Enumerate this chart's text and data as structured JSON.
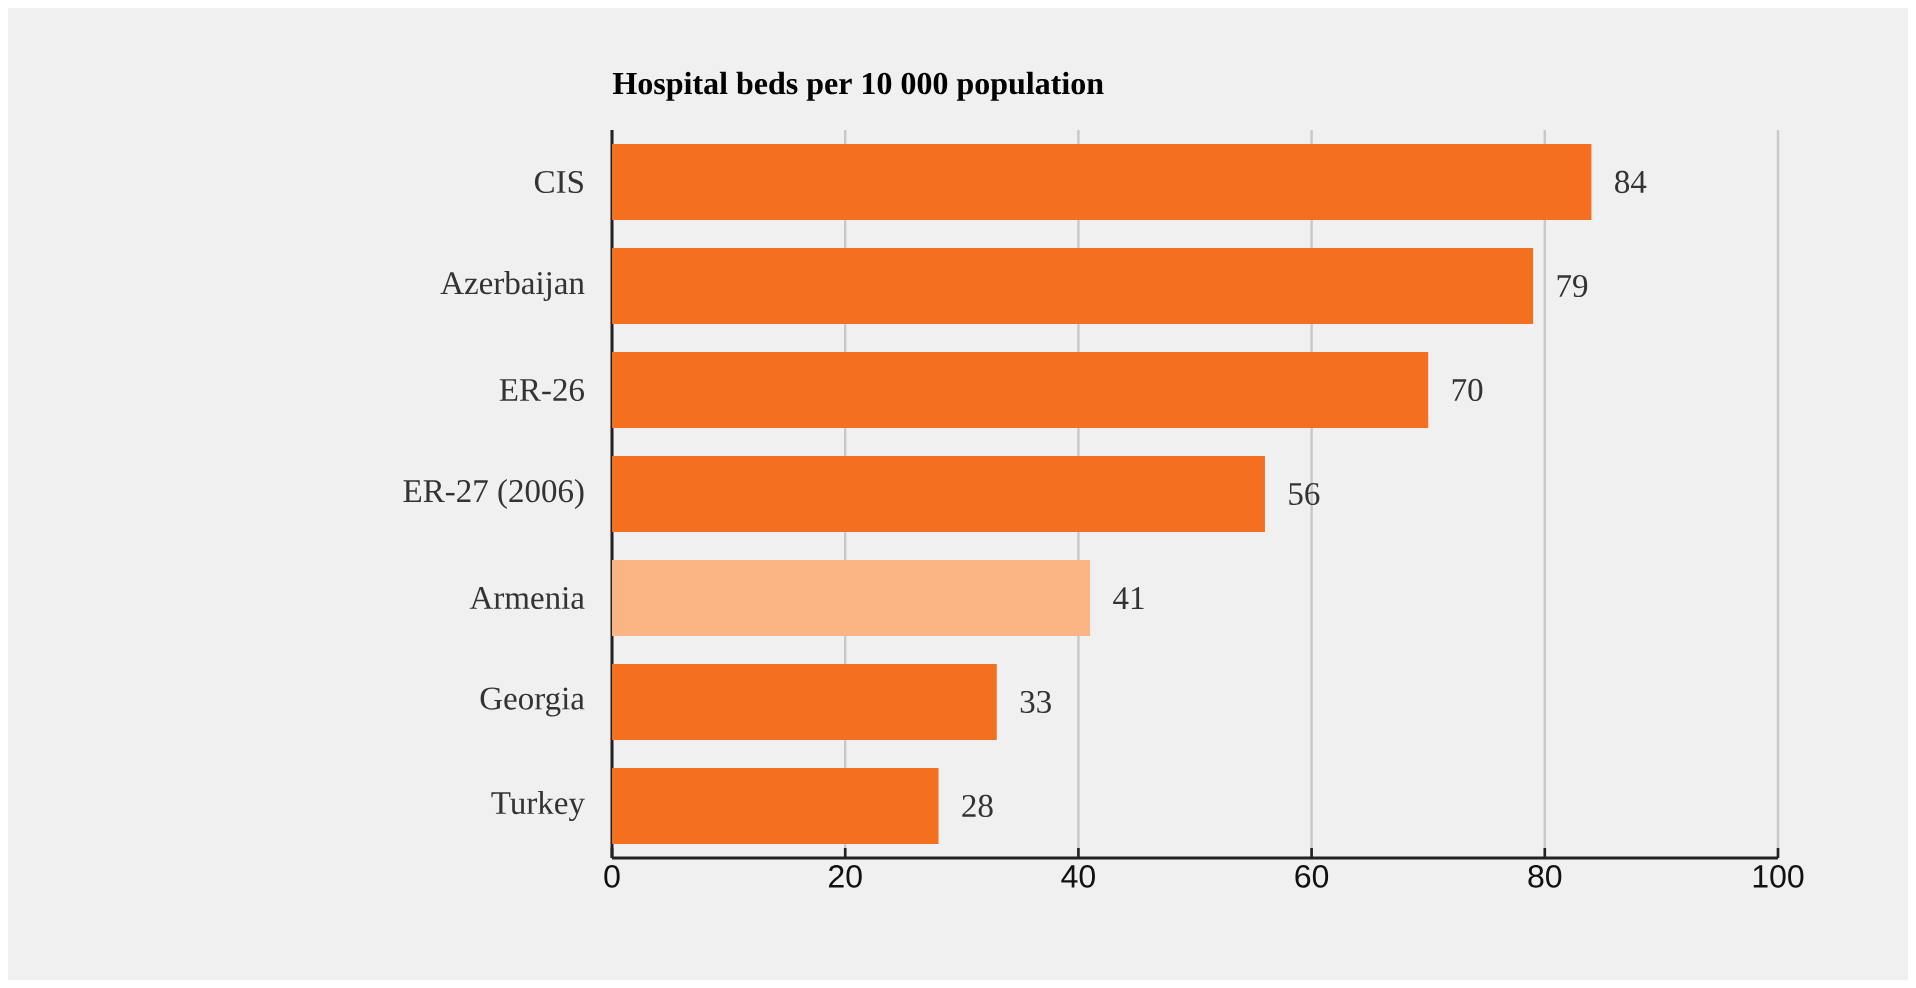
{
  "chart_data": {
    "type": "bar",
    "orientation": "horizontal",
    "title": "Hospital beds per 10 000 population",
    "categories": [
      "CIS",
      "Azerbaijan",
      "ER-26",
      "ER-27 (2006)",
      "Armenia",
      "Georgia",
      "Turkey"
    ],
    "values": [
      84,
      79,
      70,
      56,
      41,
      33,
      28
    ],
    "colors": [
      "#f37021",
      "#f37021",
      "#f37021",
      "#f37021",
      "#fbb584",
      "#f37021",
      "#f37021"
    ],
    "xlim": [
      0,
      100
    ],
    "xticks": [
      0,
      20,
      40,
      60,
      80,
      100
    ],
    "grid": "x",
    "data_labels": true
  }
}
